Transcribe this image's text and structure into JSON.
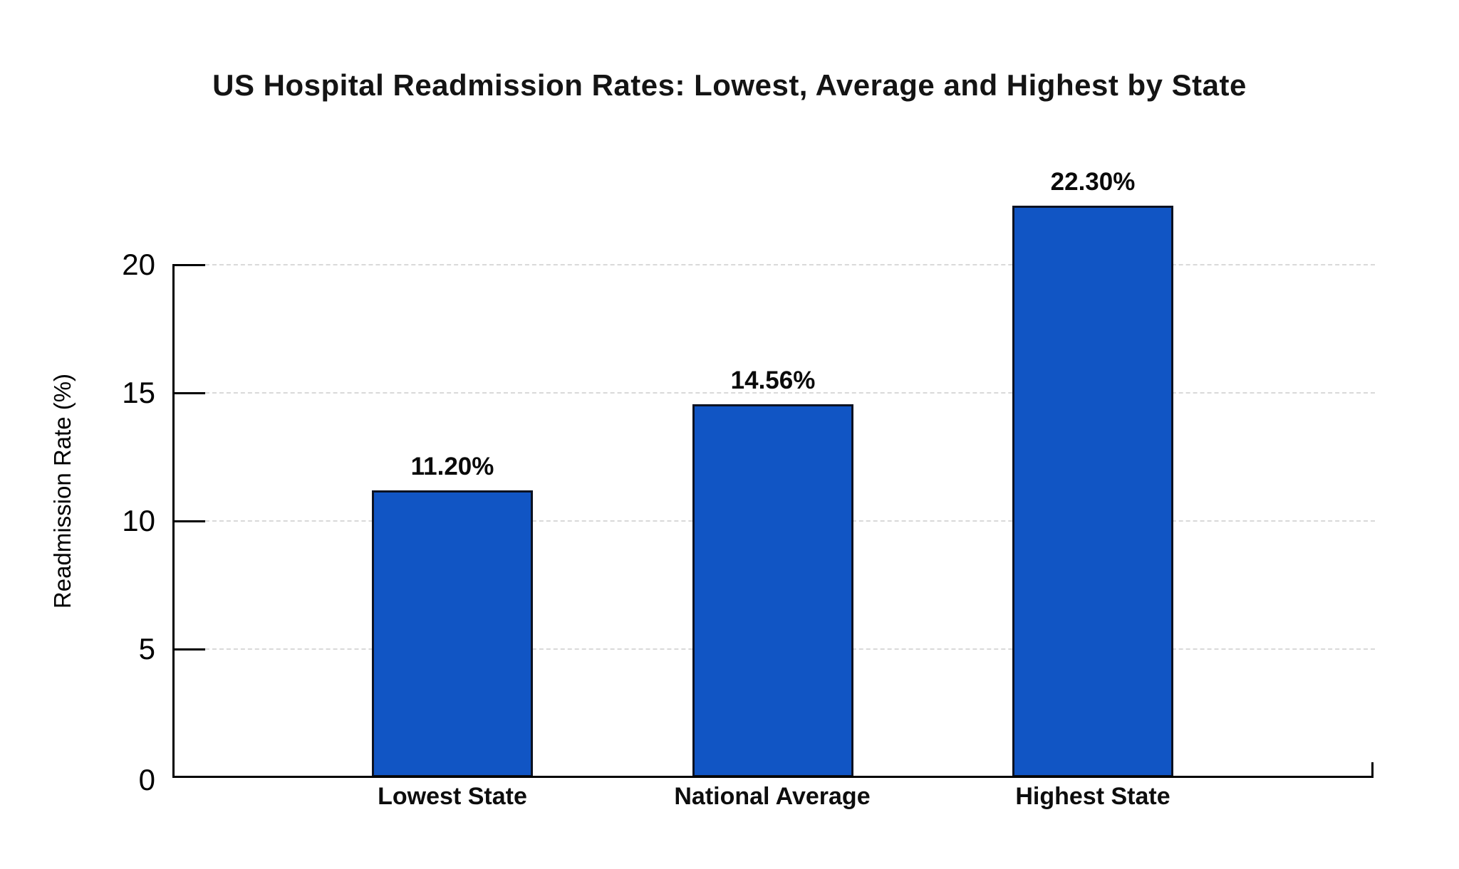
{
  "chart_data": {
    "type": "bar",
    "title": "US Hospital Readmission Rates: Lowest, Average and Highest by State",
    "ylabel": "Readmission Rate (%)",
    "xlabel": "",
    "categories": [
      "Lowest State",
      "National Average",
      "Highest State"
    ],
    "values": [
      11.2,
      14.56,
      22.3
    ],
    "value_labels": [
      "11.20%",
      "14.56%",
      "22.30%"
    ],
    "y_ticks": [
      "0",
      "5",
      "10",
      "15",
      "20"
    ],
    "ylim": [
      0,
      24
    ],
    "grid": "horizontal dashed gridlines at 5,10,15,20",
    "legend_position": "none",
    "bar_color": "#1155c4",
    "bar_border_color": "#0c1222",
    "gridline_color": "#d9d9d9",
    "axis_color": "#000000",
    "text_color": "#111111"
  }
}
